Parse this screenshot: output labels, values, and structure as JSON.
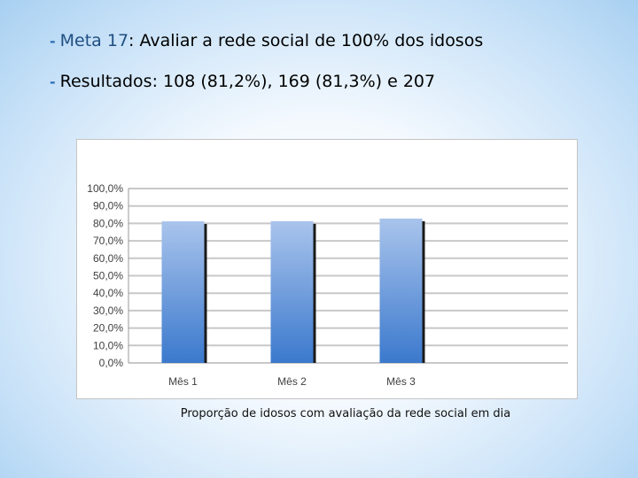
{
  "bullets": [
    {
      "label": "Meta 17",
      "text": ": Avaliar a rede social de 100% dos idosos"
    },
    {
      "label": "",
      "text": "Resultados: 108 (81,2%), 169 (81,3%) e 207"
    }
  ],
  "chart_data": {
    "type": "bar",
    "categories": [
      "Mês 1",
      "Mês 2",
      "Mês 3"
    ],
    "values": [
      81.2,
      81.3,
      82.8
    ],
    "ylim": [
      0,
      100
    ],
    "yticks": [
      "0,0%",
      "10,0%",
      "20,0%",
      "30,0%",
      "40,0%",
      "50,0%",
      "60,0%",
      "70,0%",
      "80,0%",
      "90,0%",
      "100,0%"
    ],
    "grid": true,
    "bar_color_top": "#a9c4ec",
    "bar_color_bottom": "#3b79cd"
  },
  "caption": "Proporção de  idosos com avaliação da rede social em dia"
}
